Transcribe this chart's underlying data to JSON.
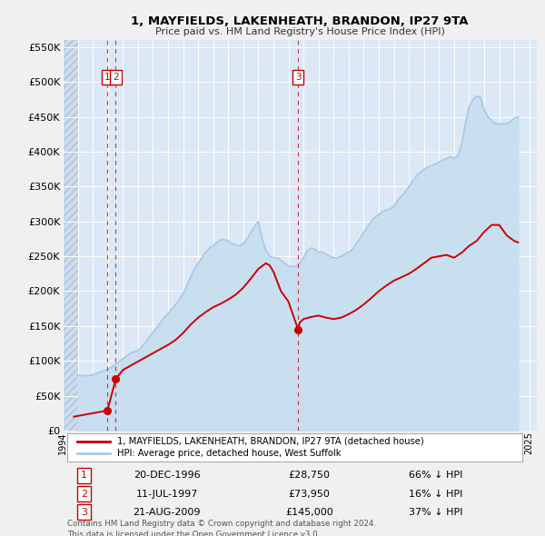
{
  "title": "1, MAYFIELDS, LAKENHEATH, BRANDON, IP27 9TA",
  "subtitle": "Price paid vs. HM Land Registry's House Price Index (HPI)",
  "hpi_label": "HPI: Average price, detached house, West Suffolk",
  "property_label": "1, MAYFIELDS, LAKENHEATH, BRANDON, IP27 9TA (detached house)",
  "xlim_start": 1994.0,
  "xlim_end": 2025.5,
  "ylim_min": 0,
  "ylim_max": 560000,
  "yticks": [
    0,
    50000,
    100000,
    150000,
    200000,
    250000,
    300000,
    350000,
    400000,
    450000,
    500000,
    550000
  ],
  "ytick_labels": [
    "£0",
    "£50K",
    "£100K",
    "£150K",
    "£200K",
    "£250K",
    "£300K",
    "£350K",
    "£400K",
    "£450K",
    "£500K",
    "£550K"
  ],
  "xticks": [
    1994,
    1995,
    1996,
    1997,
    1998,
    1999,
    2000,
    2001,
    2002,
    2003,
    2004,
    2005,
    2006,
    2007,
    2008,
    2009,
    2010,
    2011,
    2012,
    2013,
    2014,
    2015,
    2016,
    2017,
    2018,
    2019,
    2020,
    2021,
    2022,
    2023,
    2024,
    2025
  ],
  "hpi_color": "#a8c8e8",
  "hpi_fill_color": "#c8dff0",
  "property_color": "#cc0000",
  "vline_color": "#cc0000",
  "plot_bg_color": "#dce8f5",
  "hatch_bg_color": "#c8d8ec",
  "fig_bg_color": "#f0f0f0",
  "legend_bg": "white",
  "transactions": [
    {
      "num": 1,
      "date": "20-DEC-1996",
      "price": 28750,
      "x": 1996.97,
      "pct": "66%"
    },
    {
      "num": 2,
      "date": "11-JUL-1997",
      "price": 73950,
      "x": 1997.53,
      "pct": "16%"
    },
    {
      "num": 3,
      "date": "21-AUG-2009",
      "price": 145000,
      "x": 2009.64,
      "pct": "37%"
    }
  ],
  "footer": "Contains HM Land Registry data © Crown copyright and database right 2024.\nThis data is licensed under the Open Government Licence v3.0.",
  "hpi_data_x": [
    1995.0,
    1995.25,
    1995.5,
    1995.75,
    1996.0,
    1996.25,
    1996.5,
    1996.75,
    1997.0,
    1997.25,
    1997.5,
    1997.75,
    1998.0,
    1998.25,
    1998.5,
    1998.75,
    1999.0,
    1999.25,
    1999.5,
    1999.75,
    2000.0,
    2000.25,
    2000.5,
    2000.75,
    2001.0,
    2001.25,
    2001.5,
    2001.75,
    2002.0,
    2002.25,
    2002.5,
    2002.75,
    2003.0,
    2003.25,
    2003.5,
    2003.75,
    2004.0,
    2004.25,
    2004.5,
    2004.75,
    2005.0,
    2005.25,
    2005.5,
    2005.75,
    2006.0,
    2006.25,
    2006.5,
    2006.75,
    2007.0,
    2007.25,
    2007.5,
    2007.75,
    2008.0,
    2008.25,
    2008.5,
    2008.75,
    2009.0,
    2009.25,
    2009.5,
    2009.75,
    2010.0,
    2010.25,
    2010.5,
    2010.75,
    2011.0,
    2011.25,
    2011.5,
    2011.75,
    2012.0,
    2012.25,
    2012.5,
    2012.75,
    2013.0,
    2013.25,
    2013.5,
    2013.75,
    2014.0,
    2014.25,
    2014.5,
    2014.75,
    2015.0,
    2015.25,
    2015.5,
    2015.75,
    2016.0,
    2016.25,
    2016.5,
    2016.75,
    2017.0,
    2017.25,
    2017.5,
    2017.75,
    2018.0,
    2018.25,
    2018.5,
    2018.75,
    2019.0,
    2019.25,
    2019.5,
    2019.75,
    2020.0,
    2020.25,
    2020.5,
    2020.75,
    2021.0,
    2021.25,
    2021.5,
    2021.75,
    2022.0,
    2022.25,
    2022.5,
    2022.75,
    2023.0,
    2023.25,
    2023.5,
    2023.75,
    2024.0,
    2024.25
  ],
  "hpi_data_y": [
    80000,
    79000,
    78500,
    79000,
    80000,
    82000,
    84000,
    86000,
    88000,
    91000,
    95000,
    99000,
    103000,
    107000,
    111000,
    113000,
    115000,
    120000,
    127000,
    134000,
    141000,
    148000,
    155000,
    162000,
    168000,
    174000,
    181000,
    188000,
    196000,
    208000,
    220000,
    232000,
    240000,
    248000,
    256000,
    262000,
    265000,
    270000,
    274000,
    274000,
    272000,
    268000,
    266000,
    265000,
    268000,
    275000,
    284000,
    293000,
    300000,
    275000,
    258000,
    250000,
    248000,
    248000,
    244000,
    240000,
    236000,
    235000,
    236000,
    240000,
    248000,
    258000,
    262000,
    260000,
    256000,
    256000,
    253000,
    250000,
    248000,
    248000,
    250000,
    253000,
    256000,
    260000,
    268000,
    275000,
    284000,
    292000,
    300000,
    306000,
    310000,
    314000,
    316000,
    318000,
    322000,
    330000,
    336000,
    342000,
    350000,
    358000,
    365000,
    370000,
    375000,
    378000,
    380000,
    382000,
    385000,
    388000,
    390000,
    393000,
    390000,
    395000,
    410000,
    440000,
    465000,
    475000,
    480000,
    478000,
    460000,
    450000,
    445000,
    440000,
    440000,
    440000,
    440000,
    443000,
    448000,
    450000
  ],
  "property_data_x": [
    1994.75,
    1996.97,
    1997.53,
    1998.0,
    1998.5,
    1999.0,
    1999.5,
    2000.0,
    2000.5,
    2001.0,
    2001.5,
    2002.0,
    2002.5,
    2003.0,
    2003.5,
    2004.0,
    2004.5,
    2005.0,
    2005.5,
    2006.0,
    2006.5,
    2007.0,
    2007.5,
    2007.75,
    2008.0,
    2008.5,
    2009.0,
    2009.64,
    2009.75,
    2010.0,
    2010.5,
    2011.0,
    2011.5,
    2012.0,
    2012.5,
    2013.0,
    2013.5,
    2014.0,
    2014.5,
    2015.0,
    2015.5,
    2016.0,
    2016.5,
    2017.0,
    2017.5,
    2018.0,
    2018.5,
    2019.0,
    2019.5,
    2020.0,
    2020.5,
    2021.0,
    2021.5,
    2022.0,
    2022.5,
    2023.0,
    2023.5,
    2024.0,
    2024.25
  ],
  "property_data_y": [
    20000,
    28750,
    73950,
    87000,
    93000,
    99000,
    105000,
    111000,
    117000,
    123000,
    130000,
    140000,
    152000,
    162000,
    170000,
    177000,
    182000,
    188000,
    195000,
    205000,
    218000,
    232000,
    240000,
    237000,
    228000,
    200000,
    185000,
    145000,
    155000,
    160000,
    163000,
    165000,
    162000,
    160000,
    162000,
    167000,
    173000,
    181000,
    190000,
    200000,
    208000,
    215000,
    220000,
    225000,
    232000,
    240000,
    248000,
    250000,
    252000,
    248000,
    255000,
    265000,
    272000,
    285000,
    295000,
    295000,
    280000,
    272000,
    270000
  ]
}
